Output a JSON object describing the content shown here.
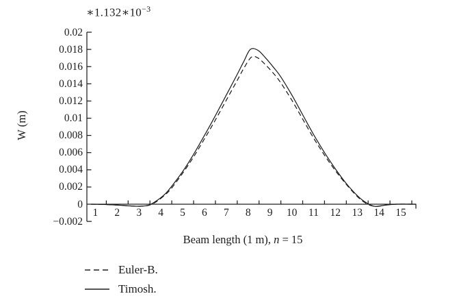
{
  "colors": {
    "line": "#1d1d1d",
    "text": "#1d1d1d",
    "background": "#ffffff"
  },
  "figure": {
    "scale_factor_base": "∗1.132∗10",
    "scale_factor_exp": "−3",
    "y_axis_title": "W (m)",
    "x_axis_title": {
      "prefix": "Beam length (1 m), ",
      "var": "n",
      "suffix": " = 15"
    }
  },
  "axes": {
    "y_tick_labels": [
      "0.02",
      "0.018",
      "0.016",
      "0.014",
      "0.012",
      "0.01",
      "0.008",
      "0.006",
      "0.004",
      "0.002",
      "0",
      "−0.002"
    ],
    "x_tick_labels": [
      "1",
      "2",
      "3",
      "4",
      "5",
      "6",
      "7",
      "8",
      "9",
      "10",
      "11",
      "12",
      "13",
      "14",
      "15"
    ]
  },
  "legend": {
    "items": [
      {
        "label": "Euler-B.",
        "line_style": "dashed"
      },
      {
        "label": "Timosh.",
        "line_style": "solid"
      }
    ]
  },
  "chart_data": {
    "type": "line",
    "title": "∗1.132∗10⁻³ (y-axis scale factor)",
    "xlabel": "Beam length (1 m), n = 15",
    "ylabel": "W (m)",
    "xlim": [
      0,
      15.5
    ],
    "ylim": [
      -0.002,
      0.02
    ],
    "x_ticks": [
      1,
      2,
      3,
      4,
      5,
      6,
      7,
      8,
      9,
      10,
      11,
      12,
      13,
      14,
      15
    ],
    "y_ticks": [
      -0.002,
      0,
      0.002,
      0.004,
      0.006,
      0.008,
      0.01,
      0.012,
      0.014,
      0.016,
      0.018,
      0.02
    ],
    "x_tick_labels_between_ticks": true,
    "grid": false,
    "legend_position": "below-left",
    "series": [
      {
        "name": "Euler-B.",
        "style": "dashed",
        "peak": {
          "x": 7.65,
          "y": 0.0171
        },
        "points": [
          [
            0.3,
            0
          ],
          [
            0.9,
            -3e-05
          ],
          [
            1.5,
            -0.0001
          ],
          [
            2.1,
            -0.0002
          ],
          [
            2.55,
            -0.00024
          ],
          [
            2.95,
            -0.00012
          ],
          [
            3.3,
            0.0003
          ],
          [
            3.7,
            0.0011
          ],
          [
            4,
            0.0019
          ],
          [
            4.5,
            0.0036
          ],
          [
            5,
            0.0055
          ],
          [
            5.5,
            0.0076
          ],
          [
            6,
            0.0098
          ],
          [
            6.5,
            0.0121
          ],
          [
            7,
            0.0144
          ],
          [
            7.3,
            0.0158
          ],
          [
            7.65,
            0.0171
          ],
          [
            7.95,
            0.017
          ],
          [
            8.3,
            0.0162
          ],
          [
            8.7,
            0.0151
          ],
          [
            9,
            0.0141
          ],
          [
            9.5,
            0.0121
          ],
          [
            10,
            0.0099
          ],
          [
            10.5,
            0.0077
          ],
          [
            11,
            0.0057
          ],
          [
            11.5,
            0.0039
          ],
          [
            12,
            0.0023
          ],
          [
            12.5,
            0.0009
          ],
          [
            12.9,
            0.0001
          ],
          [
            13.3,
            -0.00025
          ],
          [
            13.8,
            -0.0001
          ],
          [
            14.3,
            0
          ],
          [
            15.2,
            0
          ]
        ]
      },
      {
        "name": "Timosh.",
        "style": "solid",
        "peak": {
          "x": 7.6,
          "y": 0.018
        },
        "points": [
          [
            0.3,
            0
          ],
          [
            0.9,
            -3e-05
          ],
          [
            1.5,
            -0.0001
          ],
          [
            2.1,
            -0.0002
          ],
          [
            2.55,
            -0.00024
          ],
          [
            2.95,
            -0.0001
          ],
          [
            3.3,
            0.0004
          ],
          [
            3.7,
            0.0012
          ],
          [
            4,
            0.0021
          ],
          [
            4.5,
            0.0038
          ],
          [
            5,
            0.0058
          ],
          [
            5.5,
            0.008
          ],
          [
            6,
            0.0103
          ],
          [
            6.5,
            0.0127
          ],
          [
            7,
            0.0151
          ],
          [
            7.3,
            0.0166
          ],
          [
            7.6,
            0.018
          ],
          [
            7.95,
            0.0179
          ],
          [
            8.3,
            0.017
          ],
          [
            8.7,
            0.0158
          ],
          [
            9,
            0.0148
          ],
          [
            9.5,
            0.0127
          ],
          [
            10,
            0.0104
          ],
          [
            10.5,
            0.0081
          ],
          [
            11,
            0.006
          ],
          [
            11.5,
            0.0041
          ],
          [
            12,
            0.0024
          ],
          [
            12.5,
            0.001
          ],
          [
            12.9,
            0.0002
          ],
          [
            13.3,
            -0.00025
          ],
          [
            13.8,
            -0.0001
          ],
          [
            14.3,
            0
          ],
          [
            15.2,
            0
          ]
        ]
      }
    ]
  }
}
